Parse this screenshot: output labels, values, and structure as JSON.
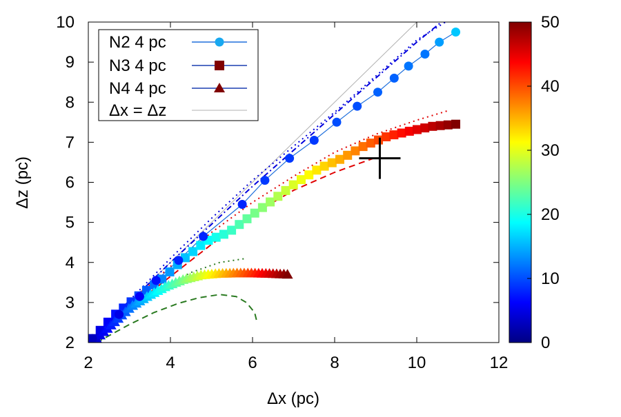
{
  "chart_data": {
    "type": "scatter",
    "title": "",
    "xlabel": "Δx (pc)",
    "ylabel": "Δz (pc)",
    "xlim": [
      2,
      12
    ],
    "ylim": [
      2,
      10
    ],
    "xticks": [
      "2",
      "4",
      "6",
      "8",
      "10",
      "12"
    ],
    "yticks": [
      "2",
      "3",
      "4",
      "5",
      "6",
      "7",
      "8",
      "9",
      "10"
    ],
    "colorbar": {
      "min": 0,
      "max": 50,
      "ticks": [
        "0",
        "10",
        "20",
        "30",
        "40",
        "50"
      ]
    },
    "legend": {
      "placement": "top-left",
      "entries": [
        {
          "label": "N2 4 pc",
          "marker": "circle",
          "color": "#18a8f0"
        },
        {
          "label": "N3 4 pc",
          "marker": "square",
          "color": "#800000"
        },
        {
          "label": "N4 4 pc",
          "marker": "triangle",
          "color": "#800000"
        },
        {
          "label": "Δx = Δz",
          "marker": "none",
          "color": "#b0b0b0"
        }
      ]
    },
    "series": [
      {
        "name": "N2 4 pc",
        "marker": "circle",
        "line_color": "#1e6fdc",
        "x": [
          2.1,
          2.75,
          3.25,
          3.65,
          4.2,
          4.8,
          5.75,
          6.3,
          6.9,
          7.5,
          8.05,
          8.55,
          9.05,
          9.45,
          9.8,
          10.2,
          10.55,
          10.95
        ],
        "y": [
          2.1,
          2.7,
          3.15,
          3.55,
          4.05,
          4.65,
          5.45,
          6.05,
          6.6,
          7.05,
          7.5,
          7.9,
          8.25,
          8.6,
          8.9,
          9.2,
          9.5,
          9.75
        ],
        "c": [
          3,
          5,
          6,
          7,
          8,
          8,
          8,
          9,
          9,
          9,
          10,
          10,
          11,
          11,
          12,
          12,
          14,
          16
        ]
      },
      {
        "name": "N3 4 pc",
        "marker": "square",
        "line_color": "#6a3aa0",
        "x_start": 2.1,
        "x_end": 10.95,
        "count": 48,
        "y": [
          2.1,
          2.7,
          3.15,
          3.55,
          4.08,
          4.53,
          4.75,
          5.17,
          5.58,
          6.0,
          6.35,
          6.6,
          6.92,
          7.15,
          7.28,
          7.4,
          7.45
        ]
      },
      {
        "name": "N4 4 pc",
        "marker": "triangle",
        "line_color": "#6a3aa0",
        "x_start": 2.2,
        "x_end": 6.85,
        "count": 54,
        "y": [
          2.1,
          2.5,
          2.9,
          3.17,
          3.4,
          3.57,
          3.68,
          3.72,
          3.73,
          3.73,
          3.72,
          3.7
        ]
      },
      {
        "name": "Δx = Δz",
        "marker": "none",
        "x": [
          2,
          10
        ],
        "y": [
          2,
          10
        ]
      },
      {
        "name": "N2 dotted",
        "style": "dotted",
        "color": "#0000dd",
        "x": [
          2.1,
          3,
          4,
          5,
          6,
          7,
          8,
          9,
          10,
          10.7
        ],
        "y": [
          2.1,
          3.05,
          4.1,
          5.1,
          6.05,
          6.9,
          7.75,
          8.65,
          9.55,
          10.0
        ]
      },
      {
        "name": "N2 dashdot",
        "style": "dashdot",
        "color": "#0000dd",
        "x": [
          2.1,
          3,
          4,
          5,
          6,
          7,
          8,
          9,
          10,
          10.6
        ],
        "y": [
          2.1,
          3.0,
          4.0,
          4.95,
          5.9,
          6.8,
          7.7,
          8.6,
          9.5,
          10.0
        ]
      },
      {
        "name": "N3 dotted",
        "style": "dotted",
        "color": "#e00000",
        "x": [
          2.1,
          3,
          4,
          5,
          6,
          7,
          8,
          9,
          10,
          10.8
        ],
        "y": [
          2.1,
          3.0,
          3.9,
          4.75,
          5.5,
          6.15,
          6.75,
          7.2,
          7.55,
          7.8
        ]
      },
      {
        "name": "N3 dashed",
        "style": "dashed",
        "color": "#e00000",
        "x": [
          2.1,
          3,
          4,
          5,
          6,
          7,
          8,
          8.95
        ],
        "y": [
          2.1,
          2.85,
          3.65,
          4.45,
          5.2,
          5.8,
          6.25,
          6.6
        ]
      },
      {
        "name": "N4 dotted",
        "style": "dotted",
        "color": "#2a7a20",
        "x": [
          2.2,
          3,
          3.8,
          4.5,
          5.2,
          5.85
        ],
        "y": [
          2.1,
          2.8,
          3.35,
          3.75,
          4.0,
          4.1
        ]
      },
      {
        "name": "N4 dashed",
        "style": "dashed",
        "color": "#2a7a20",
        "x": [
          2.2,
          3,
          3.6,
          4.2,
          4.7,
          5.2,
          5.6,
          5.85,
          6.05,
          6.1
        ],
        "y": [
          2.0,
          2.45,
          2.75,
          2.98,
          3.12,
          3.2,
          3.15,
          3.0,
          2.75,
          2.55
        ]
      }
    ],
    "annotation": {
      "marker": "cross",
      "x": 9.1,
      "y": 6.6
    }
  }
}
